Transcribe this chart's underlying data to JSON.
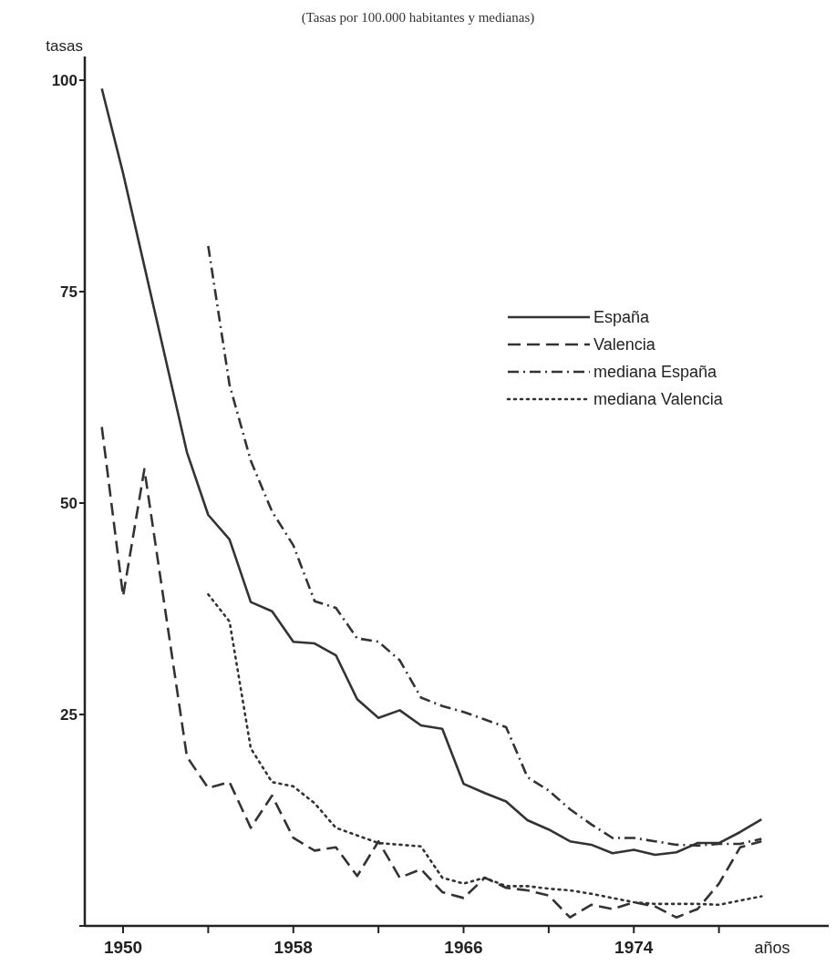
{
  "chart_data": {
    "type": "line",
    "subtitle": "(Tasas por 100.000 habitantes y medianas)",
    "xlabel": "años",
    "ylabel": "tasas",
    "xlim": [
      1948.2,
      1983.5
    ],
    "ylim": [
      0,
      102.8
    ],
    "xticks": [
      1950,
      {
        "value": 1954,
        "label": null
      },
      1958,
      {
        "value": 1962,
        "label": null
      },
      1966,
      {
        "value": 1970,
        "label": null
      },
      1974,
      {
        "value": 1978,
        "label": null
      }
    ],
    "yticks": [
      {
        "value": 0,
        "label": null
      },
      25,
      50,
      75,
      100
    ],
    "grid": false,
    "legend": "right",
    "marker": "none",
    "series": [
      {
        "name": "España",
        "color": "#333333",
        "line_style": "solid",
        "x": [
          1949,
          1950,
          1951,
          1952,
          1953,
          1954,
          1955,
          1956,
          1957,
          1958,
          1959,
          1960,
          1961,
          1962,
          1963,
          1964,
          1965,
          1966,
          1967,
          1968,
          1969,
          1970,
          1971,
          1972,
          1973,
          1974,
          1975,
          1976,
          1977,
          1978,
          1979,
          1980
        ],
        "values": [
          99,
          89,
          78,
          67,
          56,
          48.6,
          45.7,
          38.3,
          37.2,
          33.6,
          33.4,
          32,
          26.8,
          24.6,
          25.5,
          23.7,
          23.3,
          16.8,
          15.7,
          14.7,
          12.5,
          11.4,
          10,
          9.6,
          8.6,
          9,
          8.4,
          8.7,
          9.8,
          9.8,
          11.1,
          12.6
        ]
      },
      {
        "name": "Valencia",
        "color": "#333333",
        "line_style": "dashed",
        "x": [
          1949,
          1950,
          1951,
          1952,
          1953,
          1954,
          1955,
          1956,
          1957,
          1958,
          1959,
          1960,
          1961,
          1962,
          1963,
          1964,
          1965,
          1966,
          1967,
          1968,
          1969,
          1970,
          1971,
          1972,
          1973,
          1974,
          1975,
          1976,
          1977,
          1978,
          1979,
          1980
        ],
        "values": [
          59,
          39,
          54,
          37,
          20,
          16.3,
          17,
          11.6,
          15.4,
          10.4,
          8.9,
          9.3,
          5.9,
          10,
          5.7,
          6.7,
          4,
          3.3,
          5.7,
          4.5,
          4.2,
          3.6,
          1,
          2.5,
          2,
          2.8,
          2.3,
          1,
          2,
          5,
          9.3,
          10
        ]
      },
      {
        "name": "mediana España",
        "color": "#333333",
        "line_style": "dashdot",
        "x": [
          1954,
          1955,
          1956,
          1957,
          1958,
          1959,
          1960,
          1961,
          1962,
          1963,
          1964,
          1965,
          1966,
          1967,
          1968,
          1969,
          1970,
          1971,
          1972,
          1973,
          1974,
          1975,
          1976,
          1977,
          1978,
          1979,
          1980
        ],
        "values": [
          80.4,
          64,
          55,
          49,
          45,
          38.4,
          37.6,
          34,
          33.6,
          31.4,
          27,
          26,
          25.3,
          24.4,
          23.5,
          17.6,
          16,
          13.8,
          12,
          10.4,
          10.4,
          10,
          9.6,
          9.5,
          9.7,
          9.7,
          10.3
        ]
      },
      {
        "name": "mediana Valencia",
        "color": "#333333",
        "line_style": "dotted",
        "x": [
          1954,
          1955,
          1956,
          1957,
          1958,
          1959,
          1960,
          1961,
          1962,
          1963,
          1964,
          1965,
          1966,
          1967,
          1968,
          1969,
          1970,
          1971,
          1972,
          1973,
          1974,
          1975,
          1976,
          1977,
          1978,
          1979,
          1980
        ],
        "values": [
          39.2,
          36,
          21,
          17,
          16.5,
          14.5,
          11.6,
          10.7,
          9.8,
          9.6,
          9.4,
          5.7,
          5,
          5.7,
          4.7,
          4.7,
          4.4,
          4.2,
          3.8,
          3.3,
          2.8,
          2.6,
          2.6,
          2.6,
          2.5,
          3,
          3.5
        ]
      }
    ]
  }
}
